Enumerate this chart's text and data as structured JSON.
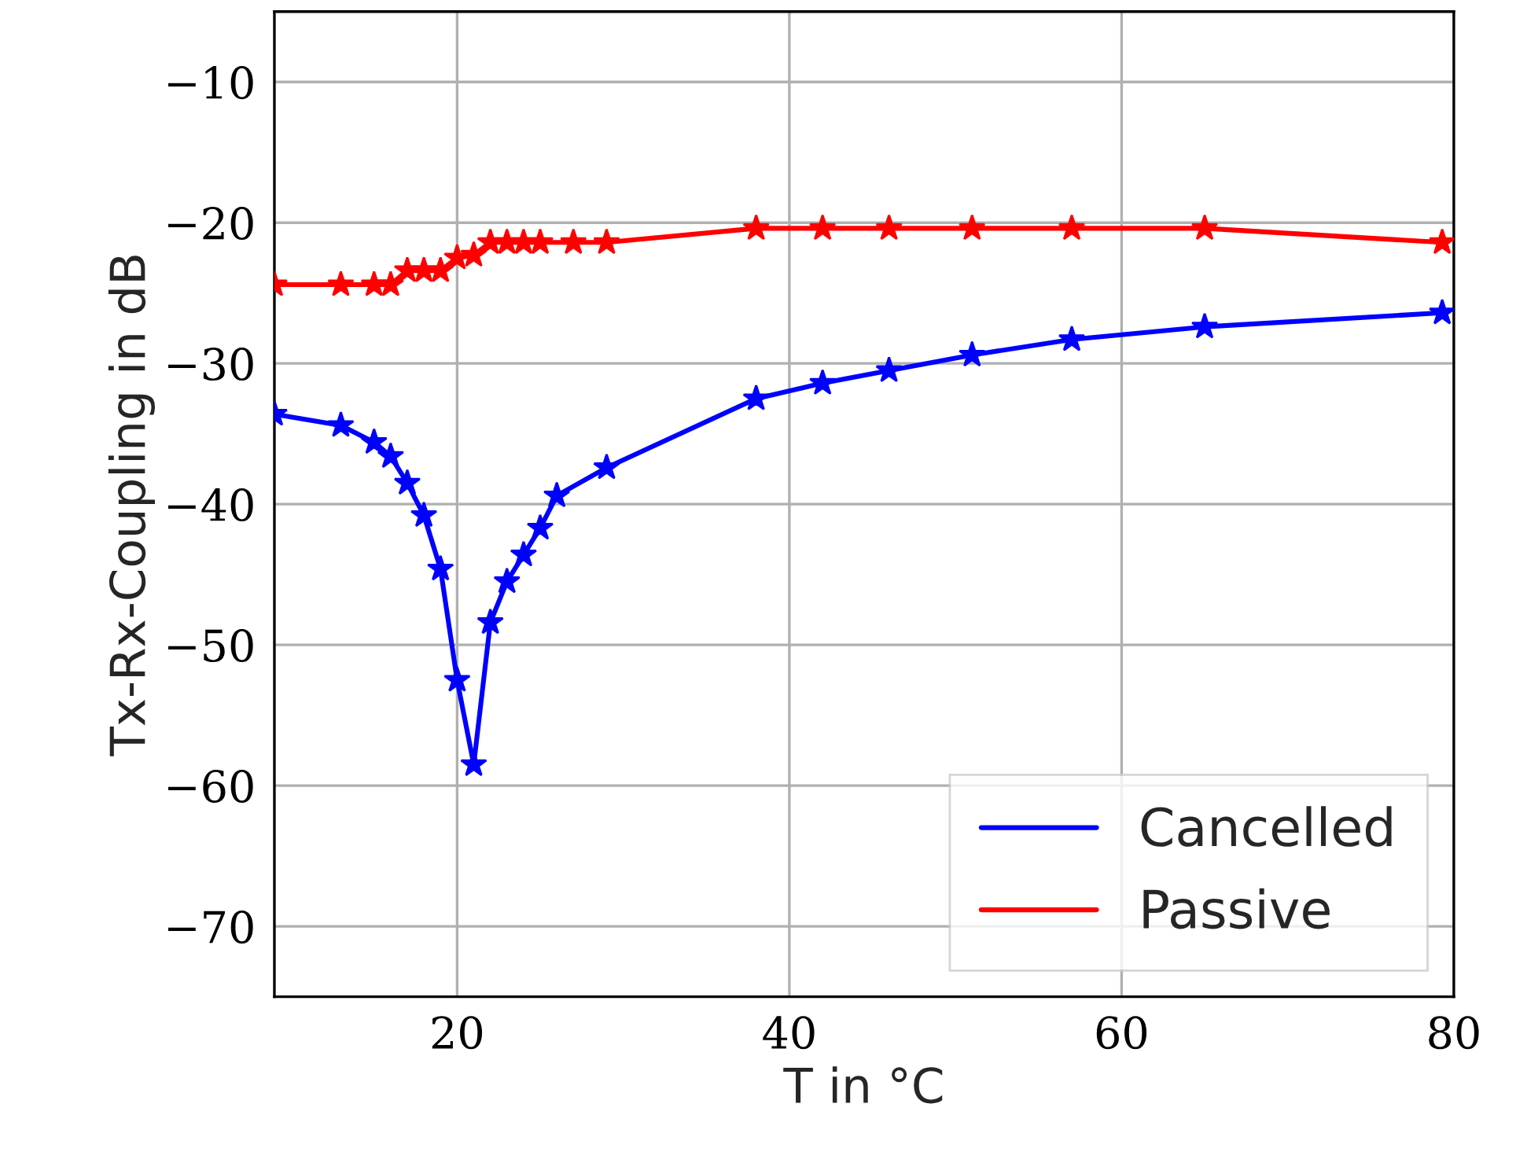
{
  "chart_data": {
    "type": "line",
    "xlabel": "T in °C",
    "ylabel": "Tx-Rx-Coupling in dB",
    "xlim": [
      9,
      80
    ],
    "ylim": [
      -75,
      -5
    ],
    "xticks": [
      20,
      40,
      60,
      80
    ],
    "yticks": [
      -70,
      -60,
      -50,
      -40,
      -30,
      -20,
      -10
    ],
    "grid": true,
    "legend": "bottom right",
    "marker": "star",
    "line_style": "solid",
    "series": [
      {
        "name": "Cancelled",
        "color": "#0000ff",
        "x": [
          9,
          13,
          15,
          16,
          17,
          18,
          19,
          20,
          21,
          22,
          23,
          24,
          25,
          26,
          29,
          38,
          42,
          46,
          51,
          57,
          65,
          79.3
        ],
        "values": [
          -33.6,
          -34.4,
          -35.6,
          -36.6,
          -38.5,
          -40.8,
          -44.6,
          -52.5,
          -58.5,
          -48.4,
          -45.5,
          -43.6,
          -41.7,
          -39.4,
          -37.4,
          -32.5,
          -31.4,
          -30.5,
          -29.4,
          -28.3,
          -27.4,
          -26.4
        ]
      },
      {
        "name": "Passive",
        "color": "#ff0000",
        "x": [
          9,
          13,
          15,
          16,
          17,
          18,
          19,
          20,
          21,
          22,
          23,
          24,
          25,
          27,
          29,
          38,
          42,
          46,
          51,
          57,
          65,
          79.3
        ],
        "values": [
          -24.4,
          -24.4,
          -24.4,
          -24.4,
          -23.4,
          -23.4,
          -23.4,
          -22.5,
          -22.3,
          -21.4,
          -21.4,
          -21.4,
          -21.4,
          -21.4,
          -21.4,
          -20.4,
          -20.4,
          -20.4,
          -20.4,
          -20.4,
          -20.4,
          -21.4
        ]
      }
    ]
  }
}
